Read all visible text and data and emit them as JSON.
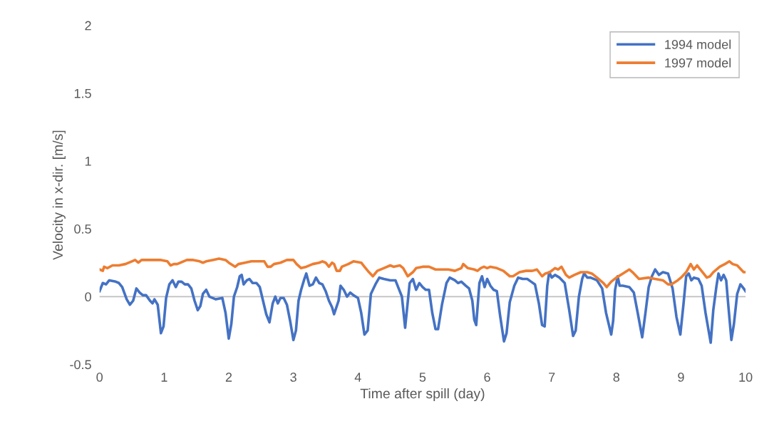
{
  "chart_data": {
    "type": "line",
    "xlabel": "Time after spill (day)",
    "ylabel": "Velocity in x-dir. [m/s]",
    "xlim": [
      0,
      10
    ],
    "xticks": [
      0,
      1,
      2,
      3,
      4,
      5,
      6,
      7,
      8,
      9,
      10
    ],
    "ylim": [
      -0.5,
      2
    ],
    "yticks": [
      -0.5,
      0,
      0.5,
      1,
      1.5,
      2
    ],
    "grid": false,
    "legend": "top right",
    "marker": "none",
    "line_style": "solid",
    "ref_lines": [
      {
        "axis": "y",
        "value": 0,
        "color": "#bfbfbf"
      }
    ],
    "series": [
      {
        "name": "1994 model",
        "color": "#4472c4",
        "x": [
          0,
          0.05,
          0.1,
          0.15,
          0.25,
          0.3,
          0.35,
          0.42,
          0.47,
          0.52,
          0.57,
          0.62,
          0.67,
          0.72,
          0.78,
          0.82,
          0.85,
          0.9,
          0.95,
          0.99,
          1.03,
          1.08,
          1.13,
          1.18,
          1.22,
          1.27,
          1.32,
          1.37,
          1.42,
          1.47,
          1.52,
          1.56,
          1.6,
          1.65,
          1.7,
          1.8,
          1.9,
          1.95,
          2.0,
          2.04,
          2.08,
          2.13,
          2.17,
          2.2,
          2.23,
          2.28,
          2.32,
          2.37,
          2.43,
          2.48,
          2.53,
          2.58,
          2.63,
          2.68,
          2.72,
          2.76,
          2.8,
          2.85,
          2.9,
          2.95,
          3.0,
          3.04,
          3.08,
          3.12,
          3.17,
          3.2,
          3.25,
          3.3,
          3.35,
          3.4,
          3.45,
          3.5,
          3.55,
          3.6,
          3.63,
          3.7,
          3.73,
          3.78,
          3.83,
          3.88,
          3.93,
          4.0,
          4.05,
          4.1,
          4.15,
          4.2,
          4.27,
          4.33,
          4.4,
          4.5,
          4.58,
          4.63,
          4.68,
          4.73,
          4.8,
          4.85,
          4.9,
          4.95,
          5.0,
          5.05,
          5.1,
          5.15,
          5.2,
          5.24,
          5.3,
          5.37,
          5.42,
          5.5,
          5.55,
          5.6,
          5.67,
          5.72,
          5.77,
          5.8,
          5.83,
          5.88,
          5.92,
          5.96,
          6.0,
          6.05,
          6.1,
          6.15,
          6.2,
          6.26,
          6.3,
          6.35,
          6.42,
          6.48,
          6.55,
          6.62,
          6.68,
          6.74,
          6.8,
          6.85,
          6.89,
          6.93,
          6.96,
          7.0,
          7.05,
          7.12,
          7.2,
          7.27,
          7.33,
          7.37,
          7.42,
          7.47,
          7.5,
          7.55,
          7.6,
          7.7,
          7.78,
          7.84,
          7.92,
          7.95,
          7.98,
          8.02,
          8.05,
          8.1,
          8.2,
          8.27,
          8.33,
          8.4,
          8.45,
          8.5,
          8.55,
          8.6,
          8.66,
          8.72,
          8.8,
          8.87,
          8.93,
          8.99,
          9.04,
          9.08,
          9.12,
          9.16,
          9.2,
          9.27,
          9.32,
          9.38,
          9.46,
          9.5,
          9.55,
          9.58,
          9.62,
          9.66,
          9.7,
          9.73,
          9.78,
          9.82,
          9.87,
          9.92,
          9.97,
          10
        ],
        "values": [
          0.04,
          0.1,
          0.09,
          0.12,
          0.11,
          0.1,
          0.07,
          -0.02,
          -0.06,
          -0.03,
          0.06,
          0.03,
          0.01,
          0.01,
          -0.03,
          -0.05,
          -0.02,
          -0.06,
          -0.27,
          -0.22,
          -0.01,
          0.09,
          0.12,
          0.07,
          0.11,
          0.11,
          0.09,
          0.09,
          0.06,
          -0.03,
          -0.1,
          -0.07,
          0.02,
          0.05,
          0.0,
          -0.02,
          -0.01,
          -0.12,
          -0.31,
          -0.2,
          0.0,
          0.07,
          0.15,
          0.16,
          0.09,
          0.12,
          0.13,
          0.1,
          0.1,
          0.07,
          -0.03,
          -0.13,
          -0.19,
          -0.05,
          0.0,
          -0.05,
          -0.01,
          -0.01,
          -0.06,
          -0.18,
          -0.32,
          -0.25,
          -0.03,
          0.05,
          0.13,
          0.17,
          0.08,
          0.09,
          0.14,
          0.1,
          0.09,
          0.04,
          -0.03,
          -0.08,
          -0.13,
          -0.03,
          0.08,
          0.05,
          0.0,
          0.03,
          0.01,
          -0.01,
          -0.12,
          -0.28,
          -0.25,
          0.02,
          0.09,
          0.14,
          0.13,
          0.12,
          0.12,
          0.06,
          0.0,
          -0.23,
          0.1,
          0.13,
          0.05,
          0.1,
          0.07,
          0.05,
          0.05,
          -0.12,
          -0.24,
          -0.24,
          -0.06,
          0.1,
          0.14,
          0.12,
          0.1,
          0.11,
          0.08,
          0.06,
          -0.03,
          -0.17,
          -0.21,
          0.1,
          0.15,
          0.07,
          0.13,
          0.08,
          0.05,
          0.04,
          -0.14,
          -0.33,
          -0.27,
          -0.04,
          0.08,
          0.14,
          0.13,
          0.13,
          0.11,
          0.09,
          -0.05,
          -0.21,
          -0.22,
          0.08,
          0.18,
          0.14,
          0.16,
          0.14,
          0.1,
          -0.1,
          -0.29,
          -0.25,
          0.0,
          0.13,
          0.17,
          0.14,
          0.14,
          0.12,
          0.06,
          -0.12,
          -0.28,
          -0.18,
          0.05,
          0.15,
          0.08,
          0.08,
          0.07,
          0.03,
          -0.12,
          -0.3,
          -0.12,
          0.07,
          0.15,
          0.2,
          0.16,
          0.18,
          0.17,
          0.06,
          -0.15,
          -0.28,
          -0.05,
          0.15,
          0.17,
          0.12,
          0.14,
          0.13,
          0.08,
          -0.12,
          -0.34,
          -0.1,
          0.08,
          0.17,
          0.12,
          0.16,
          0.12,
          -0.05,
          -0.32,
          -0.2,
          0.02,
          0.09,
          0.06,
          0.04
        ]
      },
      {
        "name": "1997 model",
        "color": "#ed7d31",
        "x": [
          0,
          0.05,
          0.07,
          0.12,
          0.2,
          0.3,
          0.4,
          0.5,
          0.55,
          0.6,
          0.65,
          0.8,
          0.95,
          1.05,
          1.1,
          1.15,
          1.2,
          1.3,
          1.35,
          1.45,
          1.55,
          1.6,
          1.65,
          1.75,
          1.85,
          1.95,
          2.0,
          2.1,
          2.15,
          2.25,
          2.35,
          2.5,
          2.55,
          2.6,
          2.65,
          2.7,
          2.8,
          2.9,
          3.0,
          3.05,
          3.12,
          3.2,
          3.3,
          3.4,
          3.45,
          3.5,
          3.55,
          3.6,
          3.63,
          3.67,
          3.72,
          3.75,
          3.85,
          3.93,
          4.05,
          4.1,
          4.17,
          4.23,
          4.3,
          4.4,
          4.5,
          4.55,
          4.65,
          4.7,
          4.77,
          4.85,
          4.9,
          5.0,
          5.1,
          5.2,
          5.4,
          5.5,
          5.6,
          5.63,
          5.7,
          5.8,
          5.85,
          5.9,
          5.95,
          6.0,
          6.05,
          6.15,
          6.25,
          6.35,
          6.4,
          6.5,
          6.6,
          6.7,
          6.77,
          6.85,
          6.9,
          6.97,
          7.05,
          7.1,
          7.15,
          7.22,
          7.27,
          7.35,
          7.45,
          7.55,
          7.62,
          7.7,
          7.8,
          7.85,
          7.92,
          8.0,
          8.1,
          8.2,
          8.25,
          8.35,
          8.5,
          8.6,
          8.72,
          8.8,
          8.85,
          8.95,
          9.0,
          9.08,
          9.15,
          9.2,
          9.25,
          9.35,
          9.4,
          9.45,
          9.5,
          9.6,
          9.68,
          9.75,
          9.8,
          9.87,
          9.93,
          9.97,
          10
        ],
        "values": [
          0.2,
          0.19,
          0.22,
          0.21,
          0.23,
          0.23,
          0.24,
          0.26,
          0.27,
          0.25,
          0.27,
          0.27,
          0.27,
          0.26,
          0.23,
          0.24,
          0.24,
          0.26,
          0.27,
          0.27,
          0.26,
          0.25,
          0.26,
          0.27,
          0.28,
          0.27,
          0.25,
          0.22,
          0.24,
          0.25,
          0.26,
          0.26,
          0.26,
          0.22,
          0.22,
          0.24,
          0.25,
          0.27,
          0.27,
          0.24,
          0.21,
          0.22,
          0.24,
          0.25,
          0.26,
          0.25,
          0.22,
          0.25,
          0.24,
          0.19,
          0.19,
          0.22,
          0.24,
          0.26,
          0.25,
          0.22,
          0.18,
          0.15,
          0.19,
          0.21,
          0.23,
          0.22,
          0.23,
          0.21,
          0.15,
          0.18,
          0.21,
          0.22,
          0.22,
          0.2,
          0.2,
          0.19,
          0.21,
          0.24,
          0.21,
          0.2,
          0.19,
          0.21,
          0.22,
          0.21,
          0.22,
          0.21,
          0.19,
          0.15,
          0.15,
          0.18,
          0.19,
          0.19,
          0.2,
          0.15,
          0.17,
          0.18,
          0.21,
          0.2,
          0.22,
          0.16,
          0.14,
          0.16,
          0.18,
          0.18,
          0.17,
          0.14,
          0.1,
          0.07,
          0.11,
          0.14,
          0.17,
          0.2,
          0.18,
          0.13,
          0.14,
          0.13,
          0.12,
          0.09,
          0.09,
          0.12,
          0.14,
          0.18,
          0.24,
          0.2,
          0.23,
          0.17,
          0.14,
          0.15,
          0.18,
          0.22,
          0.24,
          0.26,
          0.24,
          0.23,
          0.2,
          0.18,
          0.18
        ]
      }
    ]
  }
}
